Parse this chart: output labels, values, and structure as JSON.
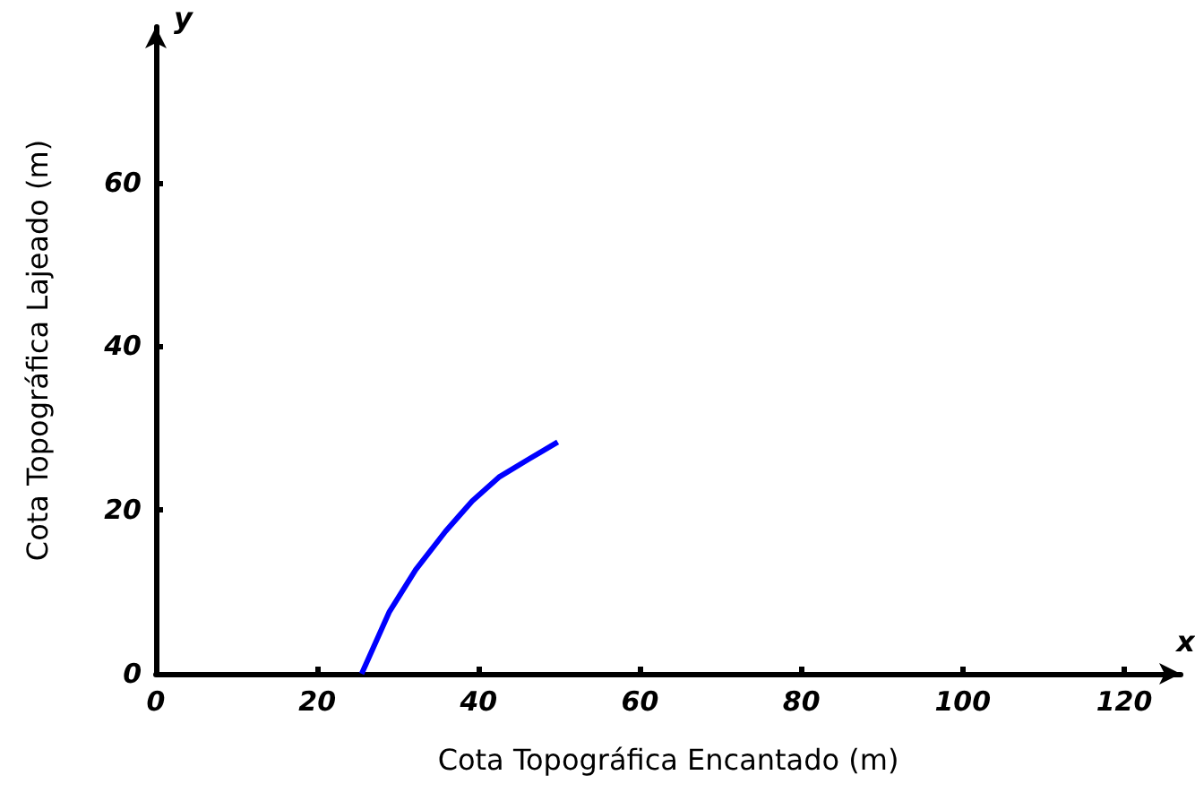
{
  "chart_data": {
    "type": "line",
    "xlabel": "Cota Topográfica Encantado (m)",
    "ylabel": "Cota Topográfica Lajeado (m)",
    "annotations": [
      "x",
      "y"
    ],
    "series": [
      {
        "color": "#0000ff",
        "x": [
          25.5,
          28.9,
          32.2,
          35.9,
          39.2,
          42.5,
          46.2,
          49.8
        ],
        "values": [
          0,
          7.5,
          12.7,
          17.4,
          21.1,
          24.0,
          26.2,
          28.3
        ]
      }
    ],
    "xlim": [
      0,
      127
    ],
    "xticks": [
      0,
      20,
      40,
      60,
      80,
      100,
      120
    ],
    "ylim": [
      0,
      79
    ],
    "yticks": [
      0,
      20,
      40,
      60
    ],
    "marker": "none",
    "line_style": "solid"
  }
}
